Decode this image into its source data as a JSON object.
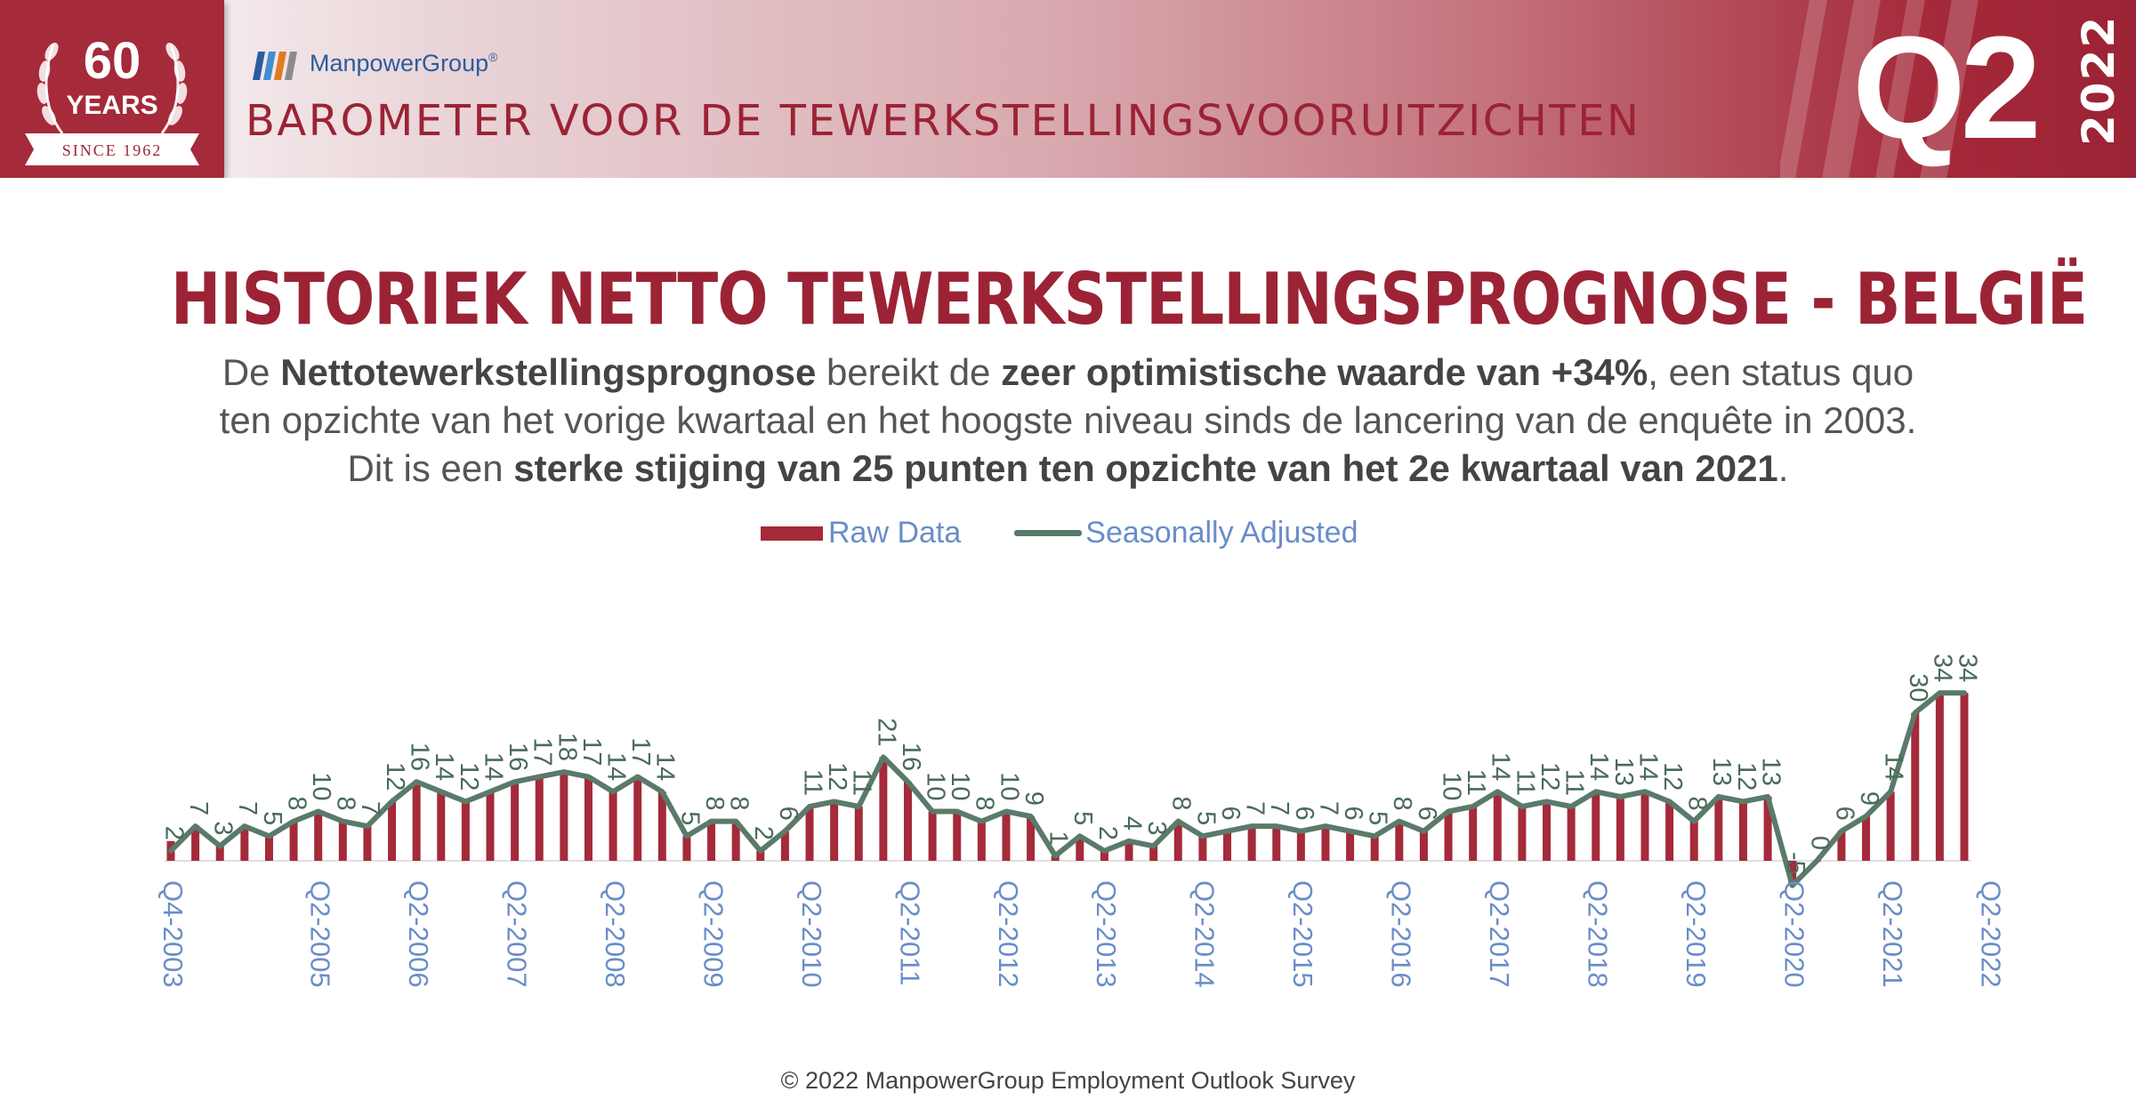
{
  "header": {
    "badge_number": "60",
    "badge_years": "YEARS",
    "badge_since": "SINCE 1962",
    "brand": "ManpowerGroup",
    "brand_mark": "®",
    "title": "BAROMETER VOOR DE TEWERKSTELLINGSVOORUITZICHTEN",
    "quarter": "Q2",
    "year": "2022",
    "colors": {
      "brand_red": "#9b2335",
      "brand_blue": "#2b5c9e"
    }
  },
  "main_title": "HISTORIEK NETTO TEWERKSTELLINGSPROGNOSE - BELGIË",
  "subtitle": {
    "l1_a": "De ",
    "l1_b": "Nettotewerkstellingsprognose",
    "l1_c": " bereikt de ",
    "l1_d": "zeer optimistische waarde van +34%",
    "l1_e": ", een status quo",
    "l2": "ten opzichte van het vorige kwartaal en het hoogste niveau sinds de lancering van de enquête in 2003.",
    "l3_a": "Dit is een ",
    "l3_b": "sterke stijging van 25 punten ten opzichte van het 2e kwartaal van 2021",
    "l3_c": "."
  },
  "legend": {
    "raw": "Raw Data",
    "sa": "Seasonally Adjusted"
  },
  "chart_data": {
    "type": "bar",
    "series": [
      {
        "name": "Raw Data",
        "type": "bar",
        "color": "#a52a3a",
        "values": [
          4,
          7,
          3,
          7,
          5,
          8,
          10,
          8,
          7,
          12,
          16,
          14,
          12,
          14,
          16,
          17,
          18,
          17,
          14,
          17,
          14,
          5,
          8,
          8,
          2,
          6,
          11,
          12,
          11,
          21,
          16,
          10,
          10,
          8,
          10,
          9,
          1,
          5,
          2,
          4,
          3,
          8,
          5,
          6,
          7,
          7,
          6,
          7,
          6,
          5,
          8,
          6,
          10,
          11,
          14,
          11,
          12,
          11,
          14,
          13,
          14,
          12,
          8,
          13,
          12,
          13,
          -5,
          0,
          6,
          9,
          14,
          30,
          34,
          34
        ]
      },
      {
        "name": "Seasonally Adjusted",
        "type": "line",
        "color": "#5a7a6a",
        "values": [
          2,
          7,
          3,
          7,
          5,
          8,
          10,
          8,
          7,
          12,
          16,
          14,
          12,
          14,
          16,
          17,
          18,
          17,
          14,
          17,
          14,
          5,
          8,
          8,
          2,
          6,
          11,
          12,
          11,
          21,
          16,
          10,
          10,
          8,
          10,
          9,
          1,
          5,
          2,
          4,
          3,
          8,
          5,
          6,
          7,
          7,
          6,
          7,
          6,
          5,
          8,
          6,
          10,
          11,
          14,
          11,
          12,
          11,
          14,
          13,
          14,
          12,
          8,
          13,
          12,
          13,
          -5,
          0,
          6,
          9,
          14,
          30,
          34,
          34
        ]
      }
    ],
    "first_category": "Q4-2003",
    "x_tick_labels": [
      "Q4-2003",
      "Q2-2005",
      "Q2-2006",
      "Q2-2007",
      "Q2-2008",
      "Q2-2009",
      "Q2-2010",
      "Q2-2011",
      "Q2-2012",
      "Q2-2013",
      "Q2-2014",
      "Q2-2015",
      "Q2-2016",
      "Q2-2017",
      "Q2-2018",
      "Q2-2019",
      "Q2-2020",
      "Q2-2021",
      "Q2-2022"
    ],
    "x_tick_indices": [
      0,
      6,
      10,
      14,
      18,
      22,
      26,
      30,
      34,
      38,
      42,
      46,
      50,
      54,
      58,
      62,
      66,
      70,
      74
    ],
    "ylim": [
      -6,
      36
    ],
    "grid": false,
    "legend_position": "top-center"
  },
  "footer": "© 2022 ManpowerGroup Employment Outlook Survey"
}
